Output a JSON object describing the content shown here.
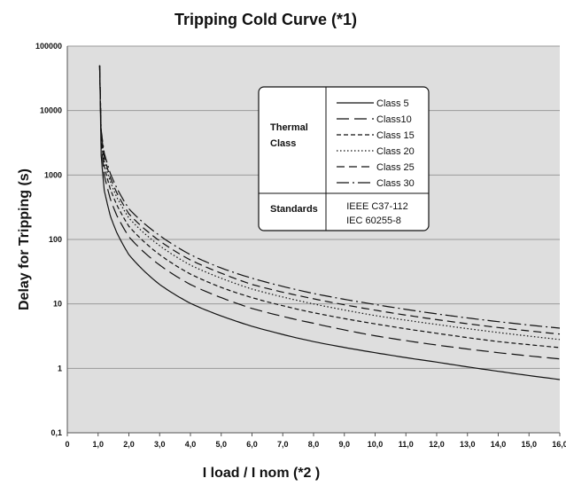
{
  "chart_data": {
    "type": "line",
    "title": "Tripping Cold Curve (*1)",
    "xlabel": "I load / I nom (*2 )",
    "ylabel": "Delay for Tripping   (s)",
    "y_scale": "log",
    "xlim": [
      0,
      16
    ],
    "ylim": [
      0.1,
      100000
    ],
    "x_ticks": [
      "0",
      "1,0",
      "2,0",
      "3,0",
      "4,0",
      "5,0",
      "6,0",
      "7,0",
      "8,0",
      "9,0",
      "10,0",
      "11,0",
      "12,0",
      "13,0",
      "14,0",
      "15,0",
      "16,0"
    ],
    "x_tick_values": [
      0,
      1,
      2,
      3,
      4,
      5,
      6,
      7,
      8,
      9,
      10,
      11,
      12,
      13,
      14,
      15,
      16
    ],
    "y_ticks": [
      "0,1",
      "1",
      "10",
      "100",
      "1000",
      "10000",
      "100000"
    ],
    "y_tick_values": [
      0.1,
      1,
      10,
      100,
      1000,
      10000,
      100000
    ],
    "grid": "horizontal",
    "plot_background": "#dedede",
    "legend_placement": "top-center",
    "series": [
      {
        "name": "Class 5",
        "dash": "solid",
        "x": [
          1.05,
          1.1,
          1.2,
          1.4,
          1.6,
          2,
          3,
          4,
          5,
          6,
          8,
          10,
          12,
          14,
          16
        ],
        "values": [
          50000,
          2000,
          580,
          230,
          130,
          58,
          20,
          10.2,
          6.5,
          4.5,
          2.6,
          1.75,
          1.25,
          0.9,
          0.67
        ]
      },
      {
        "name": "Class10",
        "dash": "longdash",
        "x": [
          1.05,
          1.1,
          1.2,
          1.4,
          1.6,
          2,
          3,
          4,
          5,
          6,
          8,
          10,
          12,
          14,
          16
        ],
        "values": [
          50000,
          3200,
          1000,
          420,
          240,
          110,
          40,
          20,
          12.5,
          8.5,
          5,
          3.2,
          2.3,
          1.75,
          1.4
        ]
      },
      {
        "name": "Class 15",
        "dash": "shortdash",
        "x": [
          1.05,
          1.1,
          1.2,
          1.4,
          1.6,
          2,
          3,
          4,
          5,
          6,
          8,
          10,
          12,
          14,
          16
        ],
        "values": [
          50000,
          3800,
          1350,
          600,
          350,
          160,
          58,
          29,
          18,
          12.5,
          7.3,
          4.9,
          3.5,
          2.6,
          2.1
        ]
      },
      {
        "name": "Class 20",
        "dash": "dotted",
        "x": [
          1.05,
          1.1,
          1.2,
          1.4,
          1.6,
          2,
          3,
          4,
          5,
          6,
          8,
          10,
          12,
          14,
          16
        ],
        "values": [
          50000,
          4300,
          1650,
          780,
          460,
          215,
          80,
          40,
          25,
          17,
          10,
          6.6,
          4.8,
          3.6,
          2.8
        ]
      },
      {
        "name": "Class 25",
        "dash": "dash",
        "x": [
          1.05,
          1.1,
          1.2,
          1.4,
          1.6,
          2,
          3,
          4,
          5,
          6,
          8,
          10,
          12,
          14,
          16
        ],
        "values": [
          50000,
          4700,
          1900,
          900,
          540,
          250,
          95,
          48,
          30,
          20,
          12,
          8,
          5.7,
          4.3,
          3.4
        ]
      },
      {
        "name": "Class 30",
        "dash": "dashdot",
        "x": [
          1.05,
          1.1,
          1.2,
          1.4,
          1.6,
          2,
          3,
          4,
          5,
          6,
          8,
          10,
          12,
          14,
          16
        ],
        "values": [
          50000,
          5000,
          2200,
          1050,
          640,
          300,
          115,
          58,
          36,
          25,
          14.5,
          9.8,
          7,
          5.3,
          4.2
        ]
      }
    ],
    "legend_table": {
      "thermal_class_label": [
        "Thermal",
        "Class"
      ],
      "standards_label": "Standards",
      "standards": [
        "IEEE C37-112",
        "IEC 60255-8"
      ]
    }
  }
}
